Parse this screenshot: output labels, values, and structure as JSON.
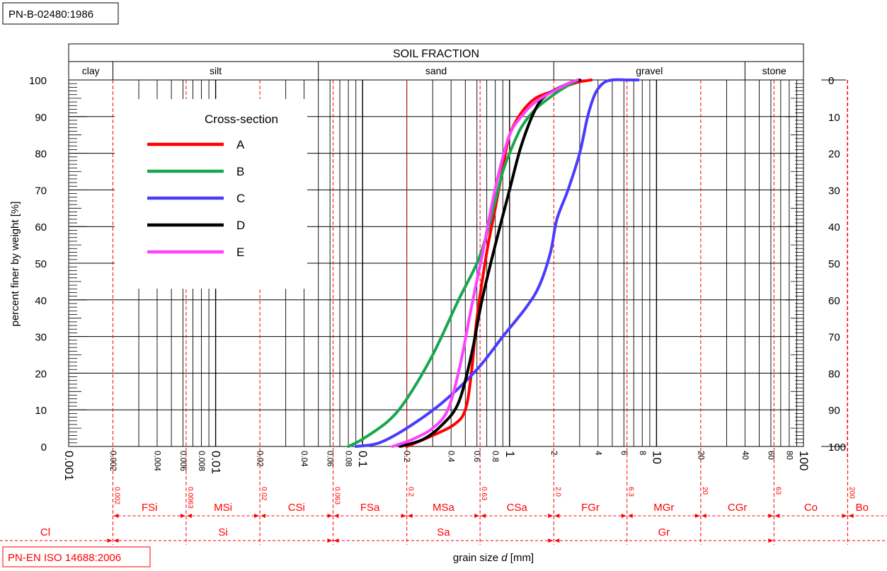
{
  "chart_data": {
    "type": "line",
    "x_scale": "log",
    "xlim": [
      0.001,
      100
    ],
    "ylim": [
      0,
      100
    ],
    "xlabel_prefix": "grain size ",
    "xlabel_var": "d",
    "xlabel_suffix": " [mm]",
    "ylabel": "percent finer by weight [%]",
    "y_ticks": [
      0,
      10,
      20,
      30,
      40,
      50,
      60,
      70,
      80,
      90,
      100
    ],
    "y_right_ticks": [
      "100",
      "90",
      "80",
      "70",
      "60",
      "50",
      "40",
      "30",
      "20",
      "10",
      "0"
    ],
    "x_tick_labels": [
      {
        "v": 0.001,
        "t": "0.001",
        "major": true
      },
      {
        "v": 0.002,
        "t": "0.002",
        "major": false
      },
      {
        "v": 0.004,
        "t": "0.004",
        "major": false
      },
      {
        "v": 0.006,
        "t": "0.006",
        "major": false
      },
      {
        "v": 0.008,
        "t": "0.008",
        "major": false
      },
      {
        "v": 0.01,
        "t": "0.01",
        "major": true
      },
      {
        "v": 0.02,
        "t": "0.02",
        "major": false
      },
      {
        "v": 0.04,
        "t": "0.04",
        "major": false
      },
      {
        "v": 0.06,
        "t": "0.06",
        "major": false
      },
      {
        "v": 0.08,
        "t": "0.08",
        "major": false
      },
      {
        "v": 0.1,
        "t": "0.1",
        "major": true
      },
      {
        "v": 0.2,
        "t": "0.2",
        "major": false
      },
      {
        "v": 0.4,
        "t": "0.4",
        "major": false
      },
      {
        "v": 0.6,
        "t": "0.6",
        "major": false
      },
      {
        "v": 0.8,
        "t": "0.8",
        "major": false
      },
      {
        "v": 1,
        "t": "1",
        "major": true
      },
      {
        "v": 2,
        "t": "2",
        "major": false
      },
      {
        "v": 4,
        "t": "4",
        "major": false
      },
      {
        "v": 6,
        "t": "6",
        "major": false
      },
      {
        "v": 8,
        "t": "8",
        "major": false
      },
      {
        "v": 10,
        "t": "10",
        "major": true
      },
      {
        "v": 20,
        "t": "20",
        "major": false
      },
      {
        "v": 40,
        "t": "40",
        "major": false
      },
      {
        "v": 60,
        "t": "60",
        "major": false
      },
      {
        "v": 80,
        "t": "80",
        "major": false
      },
      {
        "v": 100,
        "t": "100",
        "major": true
      }
    ],
    "grid_lines": [
      0.003,
      0.004,
      0.005,
      0.006,
      0.007,
      0.008,
      0.009,
      0.01,
      0.03,
      0.04,
      0.05,
      0.06,
      0.07,
      0.08,
      0.09,
      0.1,
      0.2,
      0.3,
      0.4,
      0.5,
      0.6,
      0.7,
      0.8,
      0.9,
      1,
      3,
      4,
      5,
      6,
      7,
      8,
      9,
      10,
      30,
      40,
      50,
      60,
      70,
      80,
      90
    ],
    "pn_b_standard": "PN-B-02480:1986",
    "fraction_title": "SOIL FRACTION",
    "pn_b_fractions": [
      {
        "label": "clay",
        "from": 0.001,
        "to": 0.002
      },
      {
        "label": "silt",
        "from": 0.002,
        "to": 0.05
      },
      {
        "label": "sand",
        "from": 0.05,
        "to": 2
      },
      {
        "label": "gravel",
        "from": 2,
        "to": 40
      },
      {
        "label": "stone",
        "from": 40,
        "to": 100
      }
    ],
    "iso_standard": "PN-EN ISO 14688:2006",
    "iso_boundaries": [
      {
        "v": 0.002,
        "t": "0.002"
      },
      {
        "v": 0.0063,
        "t": "0.0063"
      },
      {
        "v": 0.02,
        "t": "0.02"
      },
      {
        "v": 0.063,
        "t": "0.063"
      },
      {
        "v": 0.2,
        "t": "0.2"
      },
      {
        "v": 0.63,
        "t": "0.63"
      },
      {
        "v": 2.0,
        "t": "2.0"
      },
      {
        "v": 6.3,
        "t": "6.3"
      },
      {
        "v": 20,
        "t": "20"
      },
      {
        "v": 63,
        "t": "63"
      },
      {
        "v": 200,
        "t": "200"
      }
    ],
    "iso_sub_fractions": [
      {
        "label": "FSi",
        "from": 0.002,
        "to": 0.0063
      },
      {
        "label": "MSi",
        "from": 0.0063,
        "to": 0.02
      },
      {
        "label": "CSi",
        "from": 0.02,
        "to": 0.063
      },
      {
        "label": "FSa",
        "from": 0.063,
        "to": 0.2
      },
      {
        "label": "MSa",
        "from": 0.2,
        "to": 0.63
      },
      {
        "label": "CSa",
        "from": 0.63,
        "to": 2.0
      },
      {
        "label": "FGr",
        "from": 2.0,
        "to": 6.3
      },
      {
        "label": "MGr",
        "from": 6.3,
        "to": 20
      },
      {
        "label": "CGr",
        "from": 20,
        "to": 63
      },
      {
        "label": "Co",
        "from": 63,
        "to": 200
      },
      {
        "label": "Bo",
        "from": 200,
        "to": 630
      }
    ],
    "iso_main_fractions": [
      {
        "label": "Cl",
        "from": 0.0003,
        "to": 0.002
      },
      {
        "label": "Si",
        "from": 0.002,
        "to": 0.063
      },
      {
        "label": "Sa",
        "from": 0.063,
        "to": 2.0
      },
      {
        "label": "Gr",
        "from": 2.0,
        "to": 63
      }
    ],
    "legend_title": "Cross-section",
    "legend_position": "upper-left",
    "series": [
      {
        "name": "A",
        "color": "#ff0000",
        "x": [
          0.2,
          0.3,
          0.42,
          0.5,
          0.55,
          0.6,
          0.7,
          0.8,
          0.9,
          1.0,
          1.2,
          1.5,
          2.0,
          2.5,
          3.0,
          3.6
        ],
        "y": [
          0,
          3,
          6,
          10,
          20,
          35,
          53,
          65,
          76,
          85,
          91,
          95,
          97,
          98.5,
          99.5,
          100
        ]
      },
      {
        "name": "B",
        "color": "#1aa64f",
        "x": [
          0.08,
          0.1,
          0.15,
          0.2,
          0.3,
          0.45,
          0.6,
          0.7,
          0.8,
          0.9,
          1.0,
          1.2,
          1.5,
          2.0,
          2.5,
          3.0
        ],
        "y": [
          0,
          2,
          7,
          13,
          25,
          40,
          50,
          58,
          67,
          75,
          80,
          87,
          92,
          96,
          98.5,
          100
        ]
      },
      {
        "name": "C",
        "color": "#4a3bff",
        "x": [
          0.09,
          0.13,
          0.2,
          0.35,
          0.6,
          0.9,
          1.3,
          1.6,
          1.9,
          2.1,
          2.5,
          3.0,
          3.4,
          3.8,
          4.3,
          5.0,
          6.5,
          7.5
        ],
        "y": [
          0,
          1,
          5,
          12,
          21,
          30,
          38,
          44,
          53,
          62,
          70,
          80,
          90,
          96,
          99,
          100,
          100,
          100
        ]
      },
      {
        "name": "D",
        "color": "#000000",
        "x": [
          0.18,
          0.26,
          0.35,
          0.45,
          0.55,
          0.65,
          0.8,
          1.0,
          1.2,
          1.5,
          1.8,
          2.5,
          3.0
        ],
        "y": [
          0,
          2,
          6,
          12,
          25,
          40,
          55,
          70,
          82,
          92,
          96,
          99,
          100
        ]
      },
      {
        "name": "E",
        "color": "#ff40ff",
        "x": [
          0.16,
          0.22,
          0.3,
          0.38,
          0.46,
          0.55,
          0.65,
          0.75,
          0.85,
          1.0,
          1.2,
          1.5,
          2.0,
          2.5,
          2.9
        ],
        "y": [
          0,
          2,
          5,
          10,
          22,
          38,
          52,
          65,
          75,
          85,
          90,
          94,
          97,
          99,
          100
        ]
      }
    ]
  }
}
